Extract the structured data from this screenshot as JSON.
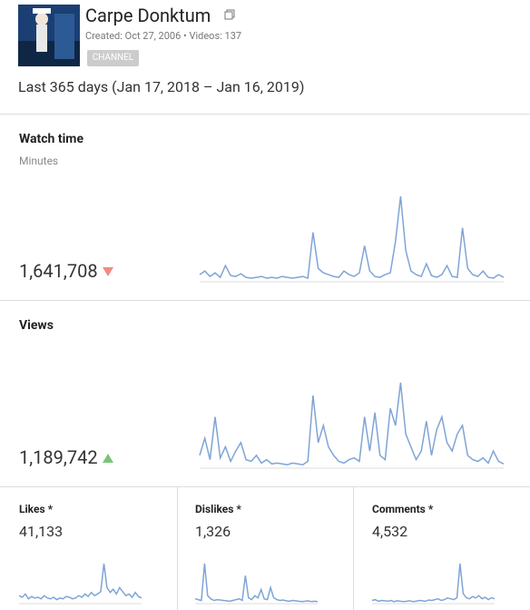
{
  "header": {
    "channel_name": "Carpe Donktum",
    "created": "Created: Oct 27, 2006",
    "separator": "•",
    "videos": "Videos: 137",
    "badge": "CHANNEL",
    "period": "Last 365 days (Jan 17, 2018 – Jan 16, 2019)"
  },
  "metrics": [
    {
      "title": "Watch time",
      "unit": "Minutes",
      "total": "1,641,708",
      "trend": "down",
      "color": "#7fa4d6",
      "sparkline": [
        8,
        12,
        6,
        10,
        5,
        18,
        7,
        6,
        9,
        5,
        4,
        5,
        6,
        4,
        5,
        4,
        6,
        5,
        4,
        5,
        6,
        4,
        55,
        15,
        10,
        8,
        6,
        5,
        12,
        8,
        6,
        10,
        40,
        12,
        6,
        5,
        8,
        10,
        45,
        95,
        35,
        12,
        8,
        6,
        20,
        7,
        5,
        8,
        18,
        6,
        5,
        60,
        15,
        8,
        6,
        12,
        5,
        4,
        8,
        5
      ]
    },
    {
      "title": "Views",
      "total": "1,189,742",
      "trend": "up",
      "color": "#7fa4d6",
      "sparkline": [
        15,
        35,
        10,
        60,
        12,
        25,
        8,
        20,
        30,
        10,
        8,
        15,
        6,
        10,
        5,
        6,
        5,
        4,
        6,
        5,
        4,
        8,
        85,
        30,
        50,
        25,
        15,
        8,
        6,
        10,
        12,
        8,
        60,
        20,
        65,
        15,
        10,
        70,
        50,
        100,
        40,
        25,
        10,
        20,
        55,
        15,
        45,
        60,
        30,
        20,
        40,
        50,
        15,
        10,
        8,
        12,
        6,
        20,
        8,
        5
      ]
    },
    {
      "title": "Likes *",
      "total": "41,133",
      "color": "#7fa4d6",
      "sparkline": [
        10,
        8,
        12,
        6,
        9,
        7,
        8,
        6,
        10,
        7,
        6,
        8,
        5,
        7,
        6,
        9,
        8,
        6,
        7,
        10,
        8,
        12,
        9,
        14,
        10,
        12,
        15,
        50,
        20,
        14,
        18,
        12,
        20,
        15,
        10,
        12,
        8,
        14,
        9,
        7
      ]
    },
    {
      "title": "Dislikes *",
      "total": "1,326",
      "color": "#7fa4d6",
      "sparkline": [
        12,
        10,
        8,
        100,
        20,
        12,
        8,
        10,
        9,
        8,
        7,
        6,
        8,
        10,
        12,
        8,
        70,
        15,
        10,
        20,
        14,
        35,
        12,
        10,
        40,
        15,
        10,
        8,
        9,
        7,
        6,
        8,
        7,
        6,
        5,
        6,
        7,
        5,
        6,
        5
      ]
    },
    {
      "title": "Comments *",
      "total": "4,532",
      "color": "#7fa4d6",
      "sparkline": [
        8,
        10,
        6,
        8,
        7,
        6,
        8,
        5,
        7,
        6,
        5,
        6,
        7,
        5,
        6,
        8,
        7,
        6,
        9,
        8,
        10,
        12,
        8,
        10,
        14,
        12,
        10,
        15,
        100,
        25,
        15,
        12,
        18,
        14,
        20,
        12,
        16,
        10,
        15,
        12
      ]
    }
  ]
}
